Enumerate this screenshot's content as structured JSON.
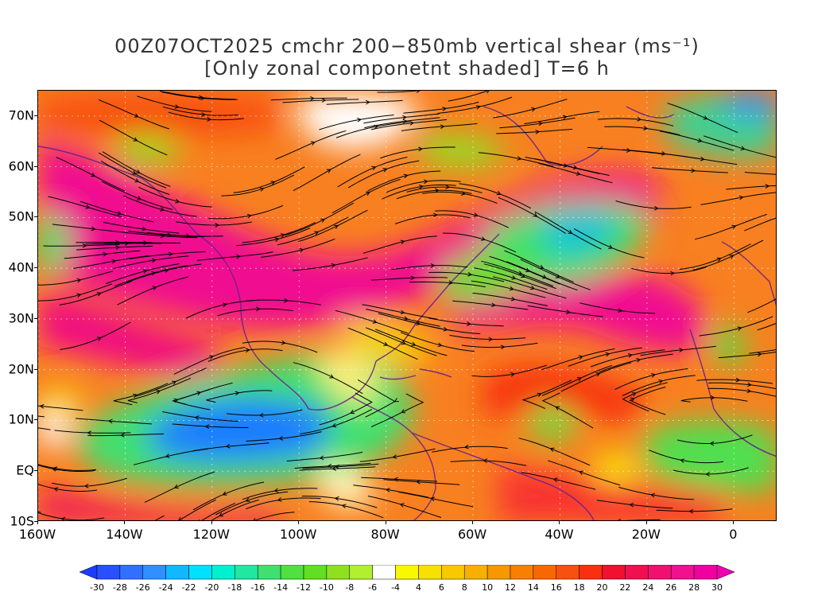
{
  "title": {
    "line1": "00Z07OCT2025 cmchr 200−850mb vertical shear (ms⁻¹)",
    "line2": "[Only zonal componetnt shaded] T=6 h"
  },
  "map": {
    "lon_min": -160,
    "lon_max": 10,
    "lat_min": -10,
    "lat_max": 75,
    "lat_labels": [
      {
        "value": 70,
        "text": "70N"
      },
      {
        "value": 60,
        "text": "60N"
      },
      {
        "value": 50,
        "text": "50N"
      },
      {
        "value": 40,
        "text": "40N"
      },
      {
        "value": 30,
        "text": "30N"
      },
      {
        "value": 20,
        "text": "20N"
      },
      {
        "value": 10,
        "text": "10N"
      },
      {
        "value": 0,
        "text": "EQ"
      },
      {
        "value": -10,
        "text": "10S"
      }
    ],
    "lon_labels": [
      {
        "value": -160,
        "text": "160W"
      },
      {
        "value": -140,
        "text": "140W"
      },
      {
        "value": -120,
        "text": "120W"
      },
      {
        "value": -100,
        "text": "100W"
      },
      {
        "value": -80,
        "text": "80W"
      },
      {
        "value": -60,
        "text": "60W"
      },
      {
        "value": -40,
        "text": "40W"
      },
      {
        "value": -20,
        "text": "20W"
      },
      {
        "value": 0,
        "text": "0"
      }
    ]
  },
  "colorbar": {
    "levels": [
      "-30",
      "-28",
      "-26",
      "-24",
      "-22",
      "-20",
      "-18",
      "-16",
      "-14",
      "-12",
      "-10",
      "-8",
      "-6",
      "-4",
      "4",
      "6",
      "8",
      "10",
      "12",
      "14",
      "16",
      "18",
      "20",
      "22",
      "24",
      "26",
      "28",
      "30"
    ],
    "colors": [
      "#1e3cff",
      "#2850ff",
      "#3070ff",
      "#3090ff",
      "#10b8ff",
      "#00e0ff",
      "#00f0d0",
      "#20e8a0",
      "#40e070",
      "#50e040",
      "#60e020",
      "#90e020",
      "#b0f030",
      "#ffffff",
      "#f8f800",
      "#f8e000",
      "#f8c800",
      "#f8b000",
      "#f89800",
      "#f88000",
      "#f86800",
      "#f85010",
      "#f83010",
      "#f01030",
      "#f01050",
      "#f01070",
      "#f01090",
      "#f000a0",
      "#f000b0"
    ]
  }
}
